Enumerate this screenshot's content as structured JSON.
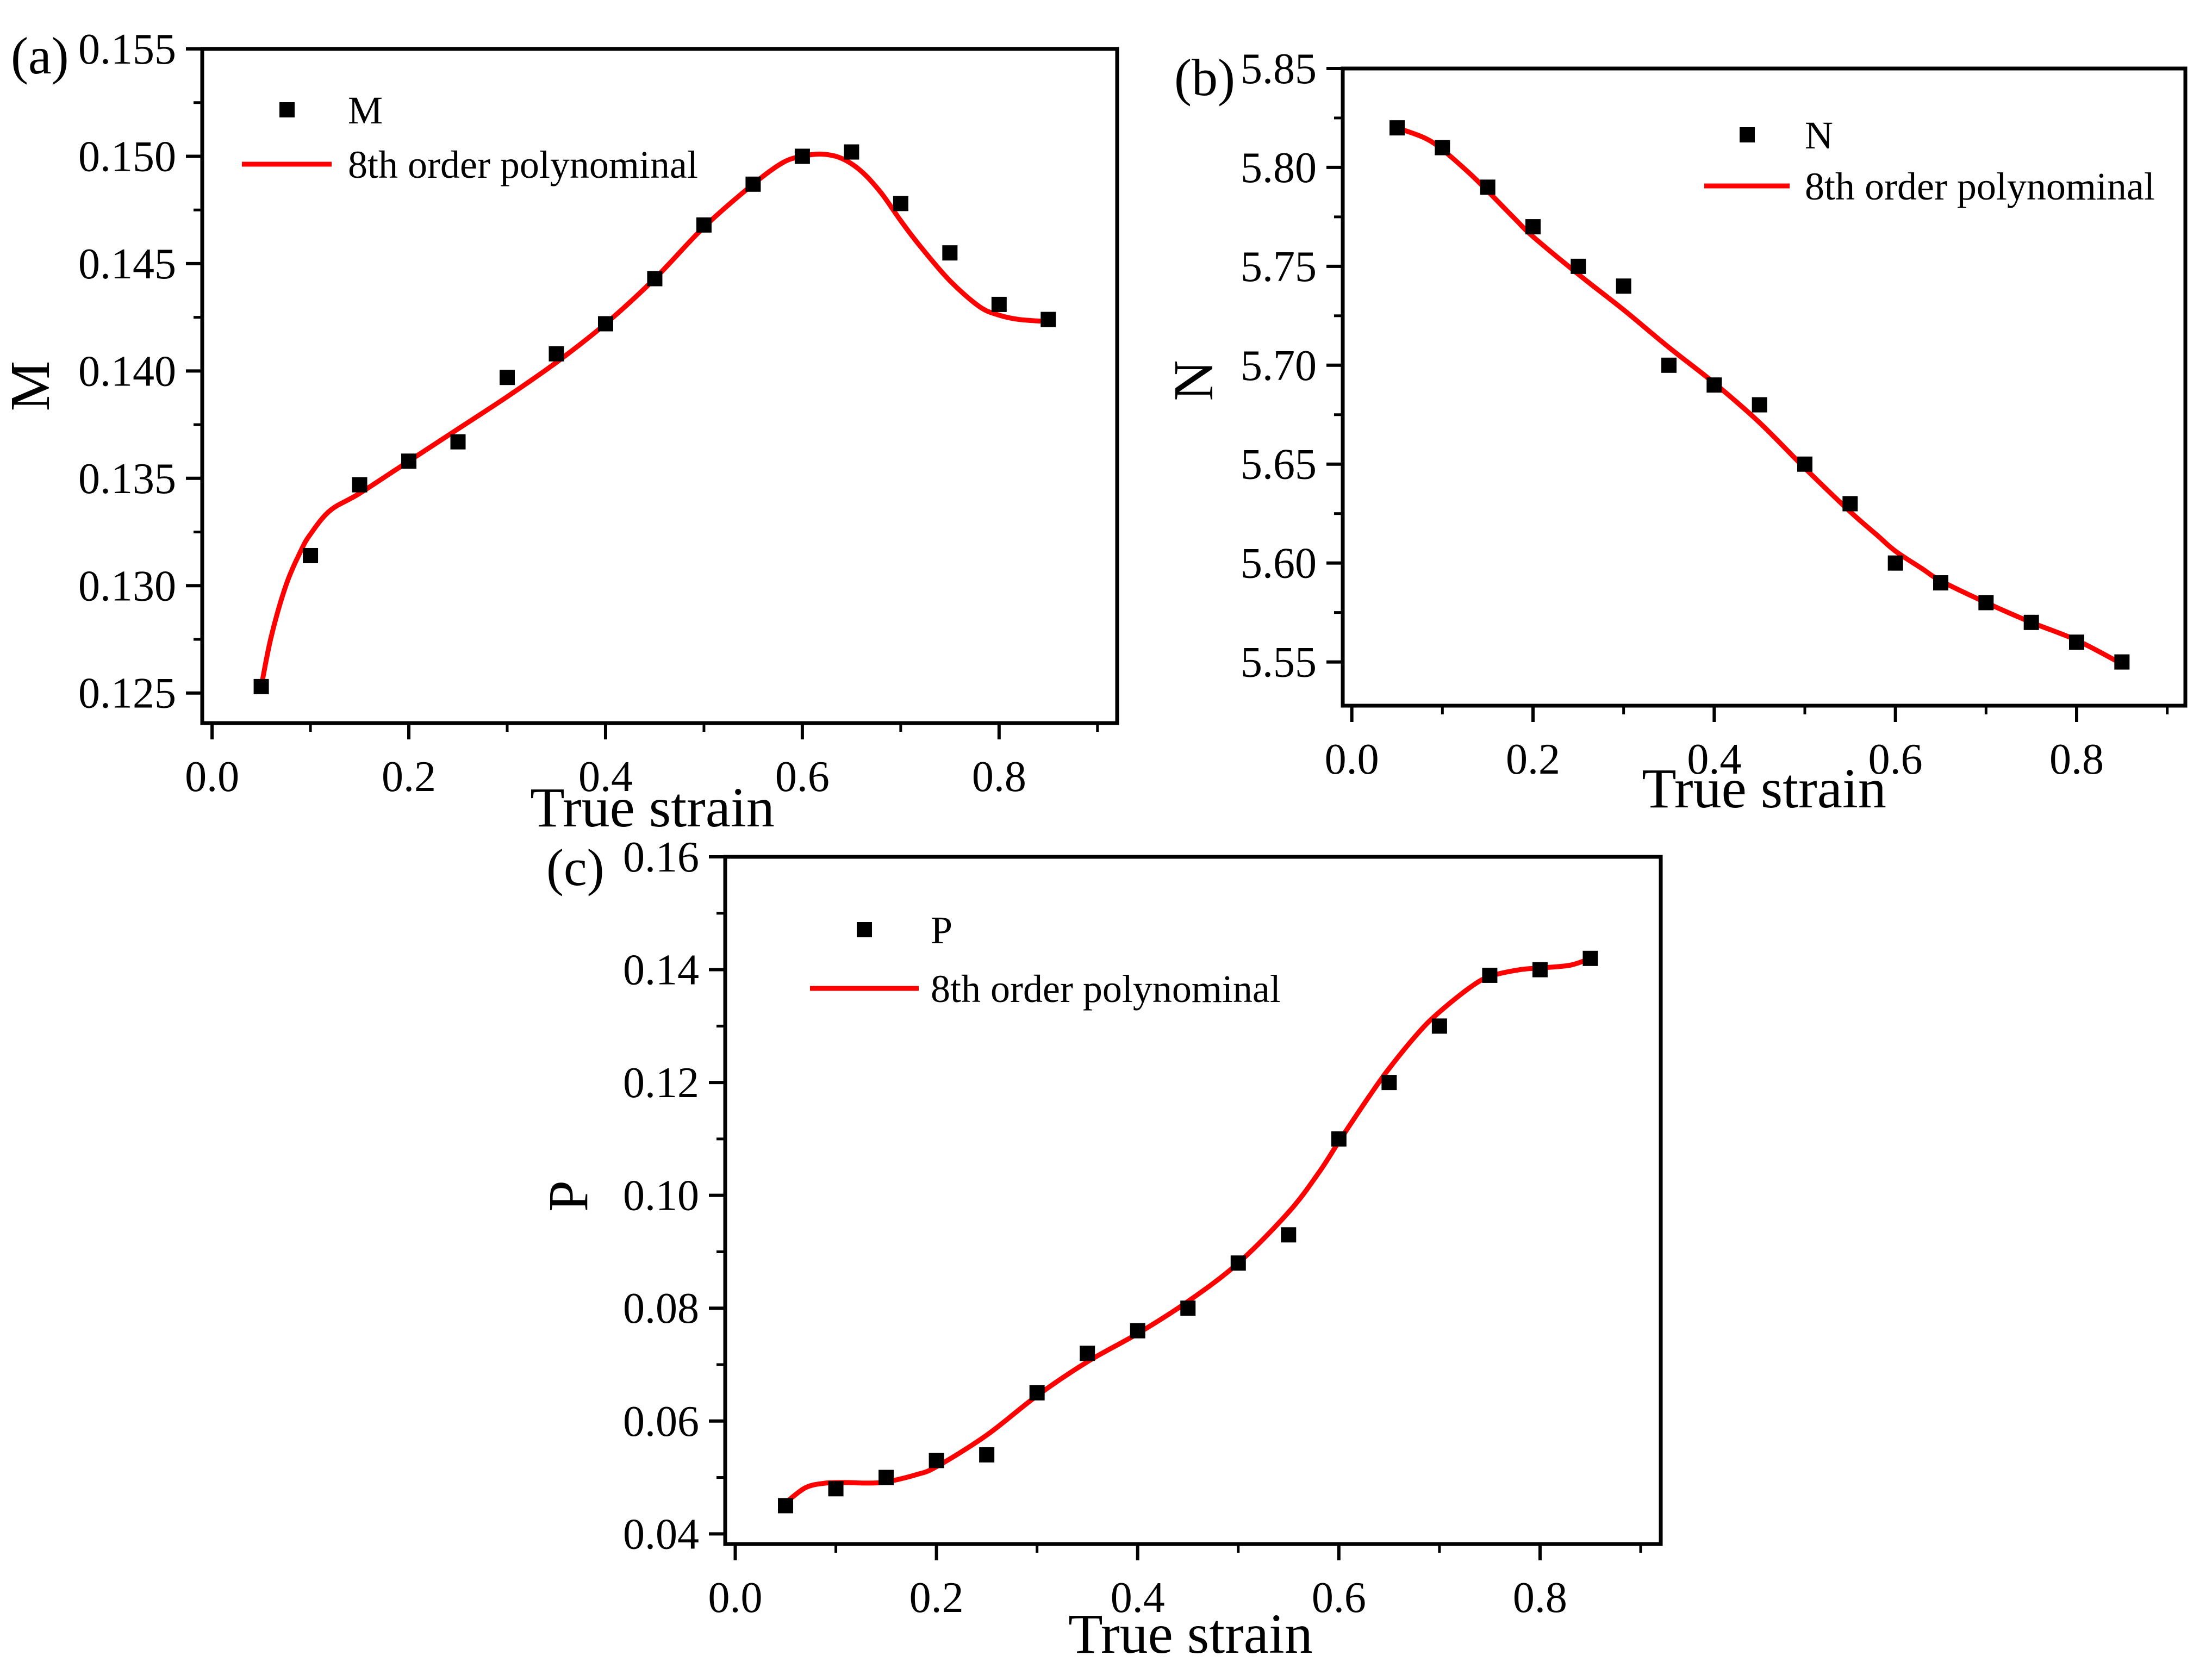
{
  "figure": {
    "background": "#ffffff",
    "line_color": "#ff0000",
    "marker_color": "#000000"
  },
  "chart_data": [
    {
      "type": "scatter",
      "panel_label": "(a)",
      "xlabel": "True strain",
      "ylabel": "M",
      "xlim": [
        -0.01,
        0.92
      ],
      "ylim": [
        0.1236,
        0.155
      ],
      "xticks": [
        0.0,
        0.2,
        0.4,
        0.6,
        0.8
      ],
      "xtick_labels": [
        "0.0",
        "0.2",
        "0.4",
        "0.6",
        "0.8"
      ],
      "yticks": [
        0.125,
        0.13,
        0.135,
        0.14,
        0.145,
        0.15,
        0.155
      ],
      "ytick_labels": [
        "0.125",
        "0.130",
        "0.135",
        "0.140",
        "0.145",
        "0.150",
        "0.155"
      ],
      "legend": {
        "placement": "top-left",
        "marker_label": "M",
        "line_label": "8th order polynominal"
      },
      "series": [
        {
          "name": "M",
          "kind": "markers",
          "x": [
            0.05,
            0.1,
            0.15,
            0.2,
            0.25,
            0.3,
            0.35,
            0.4,
            0.45,
            0.5,
            0.55,
            0.6,
            0.65,
            0.7,
            0.75,
            0.8,
            0.85
          ],
          "y": [
            0.1253,
            0.1314,
            0.1347,
            0.1358,
            0.1367,
            0.1397,
            0.1408,
            0.1422,
            0.1443,
            0.1468,
            0.1487,
            0.15,
            0.1502,
            0.1478,
            0.1455,
            0.1431,
            0.1424
          ]
        },
        {
          "name": "8th order polynominal",
          "kind": "line",
          "x": [
            0.05,
            0.06,
            0.075,
            0.09,
            0.1,
            0.12,
            0.15,
            0.2,
            0.25,
            0.3,
            0.35,
            0.4,
            0.45,
            0.5,
            0.55,
            0.58,
            0.6,
            0.62,
            0.64,
            0.66,
            0.68,
            0.7,
            0.72,
            0.75,
            0.78,
            0.8,
            0.82,
            0.85
          ],
          "y": [
            0.1253,
            0.1276,
            0.13,
            0.1316,
            0.1324,
            0.1335,
            0.1343,
            0.1358,
            0.1373,
            0.1388,
            0.1404,
            0.1422,
            0.1443,
            0.1467,
            0.1487,
            0.1497,
            0.15,
            0.1501,
            0.1499,
            0.1493,
            0.1483,
            0.147,
            0.1458,
            0.1442,
            0.143,
            0.1426,
            0.1424,
            0.1423
          ]
        }
      ]
    },
    {
      "type": "scatter",
      "panel_label": "(b)",
      "xlabel": "True strain",
      "ylabel": "N",
      "xlim": [
        -0.01,
        0.92
      ],
      "ylim": [
        5.5279,
        5.85
      ],
      "xticks": [
        0.0,
        0.2,
        0.4,
        0.6,
        0.8
      ],
      "xtick_labels": [
        "0.0",
        "0.2",
        "0.4",
        "0.6",
        "0.8"
      ],
      "yticks": [
        5.55,
        5.6,
        5.65,
        5.7,
        5.75,
        5.8,
        5.85
      ],
      "ytick_labels": [
        "5.55",
        "5.60",
        "5.65",
        "5.70",
        "5.75",
        "5.80",
        "5.85"
      ],
      "legend": {
        "placement": "top-right",
        "marker_label": "N",
        "line_label": "8th order polynominal"
      },
      "series": [
        {
          "name": "N",
          "kind": "markers",
          "x": [
            0.05,
            0.1,
            0.15,
            0.2,
            0.25,
            0.3,
            0.35,
            0.4,
            0.45,
            0.5,
            0.55,
            0.6,
            0.65,
            0.7,
            0.75,
            0.8,
            0.85
          ],
          "y": [
            5.82,
            5.81,
            5.79,
            5.77,
            5.75,
            5.74,
            5.7,
            5.69,
            5.68,
            5.65,
            5.63,
            5.6,
            5.59,
            5.58,
            5.57,
            5.56,
            5.55
          ]
        },
        {
          "name": "8th order polynominal",
          "kind": "line",
          "x": [
            0.05,
            0.08,
            0.1,
            0.13,
            0.15,
            0.18,
            0.2,
            0.25,
            0.3,
            0.35,
            0.4,
            0.45,
            0.5,
            0.55,
            0.58,
            0.6,
            0.63,
            0.65,
            0.7,
            0.75,
            0.8,
            0.85
          ],
          "y": [
            5.82,
            5.815,
            5.809,
            5.797,
            5.788,
            5.774,
            5.765,
            5.746,
            5.728,
            5.709,
            5.691,
            5.671,
            5.648,
            5.626,
            5.614,
            5.606,
            5.597,
            5.591,
            5.58,
            5.57,
            5.561,
            5.549
          ]
        }
      ]
    },
    {
      "type": "scatter",
      "panel_label": "(c)",
      "xlabel": "True strain",
      "ylabel": "P",
      "xlim": [
        -0.01,
        0.92
      ],
      "ylim": [
        0.0382,
        0.16
      ],
      "xticks": [
        0.0,
        0.2,
        0.4,
        0.6,
        0.8
      ],
      "xtick_labels": [
        "0.0",
        "0.2",
        "0.4",
        "0.6",
        "0.8"
      ],
      "yticks": [
        0.04,
        0.06,
        0.08,
        0.1,
        0.12,
        0.14,
        0.16
      ],
      "ytick_labels": [
        "0.04",
        "0.06",
        "0.08",
        "0.10",
        "0.12",
        "0.14",
        "0.16"
      ],
      "legend": {
        "placement": "top-left",
        "marker_label": "P",
        "line_label": "8th order polynominal"
      },
      "series": [
        {
          "name": "P",
          "kind": "markers",
          "x": [
            0.05,
            0.1,
            0.15,
            0.2,
            0.25,
            0.3,
            0.35,
            0.4,
            0.45,
            0.5,
            0.55,
            0.6,
            0.65,
            0.7,
            0.75,
            0.8,
            0.85
          ],
          "y": [
            0.045,
            0.048,
            0.05,
            0.053,
            0.054,
            0.065,
            0.072,
            0.076,
            0.08,
            0.088,
            0.093,
            0.11,
            0.12,
            0.13,
            0.139,
            0.14,
            0.142
          ]
        },
        {
          "name": "8th order polynominal",
          "kind": "line",
          "x": [
            0.05,
            0.07,
            0.09,
            0.11,
            0.13,
            0.15,
            0.18,
            0.2,
            0.25,
            0.3,
            0.35,
            0.4,
            0.45,
            0.5,
            0.55,
            0.58,
            0.6,
            0.63,
            0.65,
            0.68,
            0.7,
            0.73,
            0.75,
            0.78,
            0.8,
            0.83,
            0.85
          ],
          "y": [
            0.0455,
            0.0482,
            0.049,
            0.0491,
            0.049,
            0.0492,
            0.0505,
            0.0519,
            0.0575,
            0.0645,
            0.0705,
            0.0755,
            0.0812,
            0.088,
            0.097,
            0.104,
            0.1095,
            0.1175,
            0.1225,
            0.129,
            0.1325,
            0.1368,
            0.1388,
            0.14,
            0.1403,
            0.1408,
            0.142
          ]
        }
      ]
    }
  ]
}
